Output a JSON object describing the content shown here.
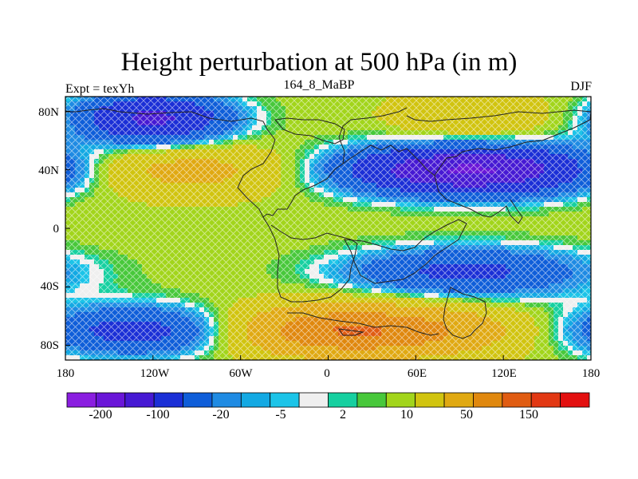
{
  "figure": {
    "title": "Height perturbation at 500 hPa (in m)",
    "left_label": "Expt = texYh",
    "center_label": "164_8_MaBP",
    "right_label": "DJF"
  },
  "axes": {
    "x_ticks": [
      "180",
      "120W",
      "60W",
      "0",
      "60E",
      "120E",
      "180"
    ],
    "y_ticks": [
      "80N",
      "40N",
      "0",
      "40S",
      "80S"
    ]
  },
  "colorbar": {
    "colors": [
      "#8a1ee0",
      "#6a16d8",
      "#4619d3",
      "#1b2fd6",
      "#0f5ed9",
      "#1f8be3",
      "#13a9e3",
      "#1cc4e8",
      "#efefef",
      "#16d0a0",
      "#48c83b",
      "#a2d51b",
      "#d1c40f",
      "#e0a912",
      "#e0880e",
      "#e05c12",
      "#e23813",
      "#e31010"
    ],
    "labels": [
      "-200",
      "-100",
      "-20",
      "-5",
      "2",
      "10",
      "50",
      "150"
    ]
  },
  "chart_data": {
    "type": "heatmap",
    "title": "Height perturbation at 500 hPa (in m)",
    "field": "500 hPa height perturbation (m)",
    "season": "DJF",
    "experiment": "texYh",
    "xlim": [
      -180,
      180
    ],
    "ylim": [
      -90,
      90
    ],
    "levels": [
      -200,
      -150,
      -100,
      -50,
      -20,
      -10,
      -5,
      -2,
      2,
      5,
      10,
      20,
      50,
      100,
      150,
      200
    ],
    "approx_features": [
      {
        "region": "North Pacific high-latitude band",
        "lon_range": [
          -160,
          -80
        ],
        "lat": 75,
        "value": -110
      },
      {
        "region": "North Pacific mid-latitude band",
        "lon_range": [
          -180,
          -40
        ],
        "lat": 40,
        "value": 70
      },
      {
        "region": "Asia/North Pacific mid-latitude low",
        "lon_range": [
          30,
          170
        ],
        "lat": 40,
        "value": -160
      },
      {
        "region": "Arctic Asia",
        "lon_range": [
          60,
          140
        ],
        "lat": 75,
        "value": 50
      },
      {
        "region": "Tropics",
        "lon_range": [
          -180,
          180
        ],
        "lat": 10,
        "value": 15
      },
      {
        "region": "Southern Indian/Pacific band",
        "lon_range": [
          30,
          160
        ],
        "lat": -30,
        "value": -60
      },
      {
        "region": "Southern high-latitude east",
        "lon_range": [
          -60,
          90
        ],
        "lat": -70,
        "value": 160
      },
      {
        "region": "Southern high-latitude west",
        "lon_range": [
          -180,
          -60
        ],
        "lat": -70,
        "value": -80
      }
    ]
  }
}
